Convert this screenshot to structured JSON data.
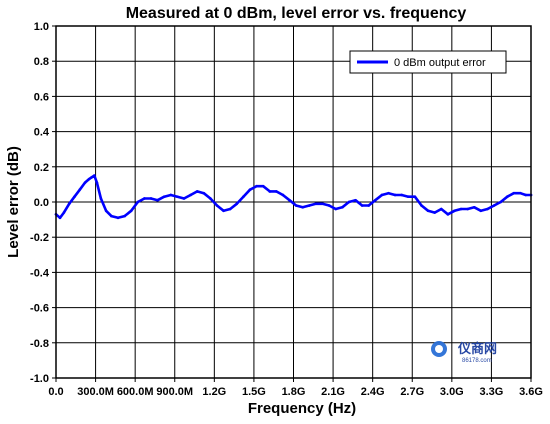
{
  "chart_data": {
    "type": "line",
    "title": "Measured at 0 dBm, level error vs. frequency",
    "xlabel": "Frequency (Hz)",
    "ylabel": "Level error (dB)",
    "xlim": [
      0,
      3600000000
    ],
    "ylim": [
      -1.0,
      1.0
    ],
    "x_tick_labels": [
      "0.0",
      "300.0M",
      "600.0M",
      "900.0M",
      "1.2G",
      "1.5G",
      "1.8G",
      "2.1G",
      "2.4G",
      "2.7G",
      "3.0G",
      "3.3G",
      "3.6G"
    ],
    "y_tick_labels": [
      "1.0",
      "0.8",
      "0.6",
      "0.4",
      "0.2",
      "0.0",
      "-0.2",
      "-0.4",
      "-0.6",
      "-0.8",
      "-1.0"
    ],
    "grid": true,
    "legend_position": "top-right",
    "series": [
      {
        "name": "0 dBm output error",
        "color": "#0000ff",
        "x": [
          0,
          30000000,
          60000000,
          100000000,
          140000000,
          180000000,
          220000000,
          250000000,
          270000000,
          290000000,
          310000000,
          340000000,
          380000000,
          420000000,
          470000000,
          520000000,
          570000000,
          620000000,
          670000000,
          720000000,
          770000000,
          820000000,
          870000000,
          920000000,
          970000000,
          1020000000,
          1070000000,
          1120000000,
          1170000000,
          1220000000,
          1270000000,
          1320000000,
          1370000000,
          1420000000,
          1470000000,
          1520000000,
          1570000000,
          1620000000,
          1670000000,
          1720000000,
          1770000000,
          1820000000,
          1870000000,
          1920000000,
          1970000000,
          2020000000,
          2070000000,
          2120000000,
          2170000000,
          2220000000,
          2270000000,
          2320000000,
          2370000000,
          2420000000,
          2470000000,
          2520000000,
          2570000000,
          2620000000,
          2670000000,
          2720000000,
          2770000000,
          2820000000,
          2870000000,
          2920000000,
          2970000000,
          3020000000,
          3070000000,
          3120000000,
          3170000000,
          3220000000,
          3270000000,
          3320000000,
          3370000000,
          3420000000,
          3470000000,
          3520000000,
          3560000000,
          3600000000
        ],
        "y": [
          -0.07,
          -0.09,
          -0.06,
          -0.01,
          0.03,
          0.07,
          0.11,
          0.13,
          0.14,
          0.15,
          0.11,
          0.02,
          -0.05,
          -0.08,
          -0.09,
          -0.08,
          -0.05,
          0.0,
          0.02,
          0.02,
          0.01,
          0.03,
          0.04,
          0.03,
          0.02,
          0.04,
          0.06,
          0.05,
          0.02,
          -0.02,
          -0.05,
          -0.04,
          -0.01,
          0.03,
          0.07,
          0.09,
          0.09,
          0.06,
          0.06,
          0.04,
          0.01,
          -0.02,
          -0.03,
          -0.02,
          -0.01,
          -0.01,
          -0.02,
          -0.04,
          -0.03,
          0.0,
          0.01,
          -0.02,
          -0.02,
          0.01,
          0.04,
          0.05,
          0.04,
          0.04,
          0.03,
          0.03,
          -0.02,
          -0.05,
          -0.06,
          -0.04,
          -0.07,
          -0.05,
          -0.04,
          -0.04,
          -0.03,
          -0.05,
          -0.04,
          -0.02,
          0.0,
          0.03,
          0.05,
          0.05,
          0.04,
          0.04
        ]
      }
    ]
  },
  "watermark": {
    "brand": "仪商网",
    "sub": "86178.com"
  }
}
